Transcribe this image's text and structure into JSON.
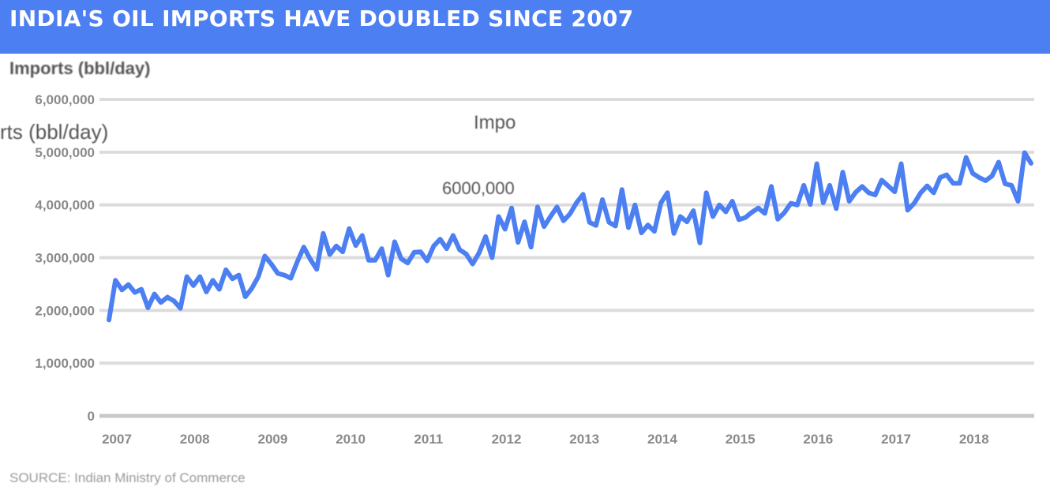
{
  "header": {
    "title": "INDIA'S OIL IMPORTS HAVE DOUBLED SINCE 2007",
    "bg_color": "#4c7ff2"
  },
  "units_label": "Imports (bbl/day)",
  "overlay": {
    "series_label": "rts (bbl/day)",
    "short_label": "Impo",
    "value_label": "6000,000"
  },
  "source": "SOURCE: Indian Ministry of Commerce",
  "chart_data": {
    "type": "line",
    "title": "INDIA'S OIL IMPORTS HAVE DOUBLED SINCE 2007",
    "ylabel": "Imports (bbl/day)",
    "xlabel": "",
    "ylim": [
      0,
      6000000
    ],
    "yticks": [
      0,
      1000000,
      2000000,
      3000000,
      4000000,
      5000000,
      6000000
    ],
    "ytick_labels": [
      "0",
      "1,000,000",
      "2,000,000",
      "3,000,000",
      "4,000,000",
      "5,000,000",
      "6,000,000"
    ],
    "xtick_labels": [
      "2007",
      "2008",
      "2009",
      "2010",
      "2011",
      "2012",
      "2013",
      "2014",
      "2015",
      "2016",
      "2017",
      "2018"
    ],
    "x_start_year": 2007,
    "grid": true,
    "line_color": "#4c7ff2",
    "series": [
      {
        "values": [
          1820000,
          2570000,
          2390000,
          2490000,
          2340000,
          2400000,
          2050000,
          2310000,
          2150000,
          2250000,
          2180000,
          2040000,
          2640000,
          2470000,
          2640000,
          2350000,
          2570000,
          2400000,
          2770000,
          2600000,
          2670000,
          2260000,
          2420000,
          2640000,
          3030000,
          2880000,
          2700000,
          2670000,
          2610000,
          2920000,
          3200000,
          2970000,
          2780000,
          3460000,
          3060000,
          3220000,
          3110000,
          3550000,
          3230000,
          3420000,
          2950000,
          2950000,
          3170000,
          2670000,
          3300000,
          2980000,
          2900000,
          3100000,
          3110000,
          2940000,
          3220000,
          3350000,
          3170000,
          3420000,
          3150000,
          3070000,
          2880000,
          3090000,
          3400000,
          3000000,
          3780000,
          3540000,
          3940000,
          3290000,
          3680000,
          3200000,
          3960000,
          3590000,
          3780000,
          3960000,
          3700000,
          3830000,
          4040000,
          4200000,
          3670000,
          3610000,
          4100000,
          3670000,
          3600000,
          4290000,
          3570000,
          4000000,
          3470000,
          3620000,
          3500000,
          4040000,
          4230000,
          3460000,
          3780000,
          3680000,
          3890000,
          3280000,
          4230000,
          3780000,
          4000000,
          3870000,
          4070000,
          3720000,
          3760000,
          3860000,
          3940000,
          3840000,
          4350000,
          3730000,
          3850000,
          4030000,
          4000000,
          4370000,
          4010000,
          4780000,
          4040000,
          4370000,
          3930000,
          4620000,
          4070000,
          4240000,
          4350000,
          4230000,
          4190000,
          4470000,
          4360000,
          4250000,
          4780000,
          3900000,
          4030000,
          4230000,
          4360000,
          4230000,
          4520000,
          4570000,
          4410000,
          4410000,
          4900000,
          4600000,
          4520000,
          4460000,
          4550000,
          4810000,
          4400000,
          4370000,
          4070000,
          4990000,
          4790000
        ]
      }
    ]
  }
}
